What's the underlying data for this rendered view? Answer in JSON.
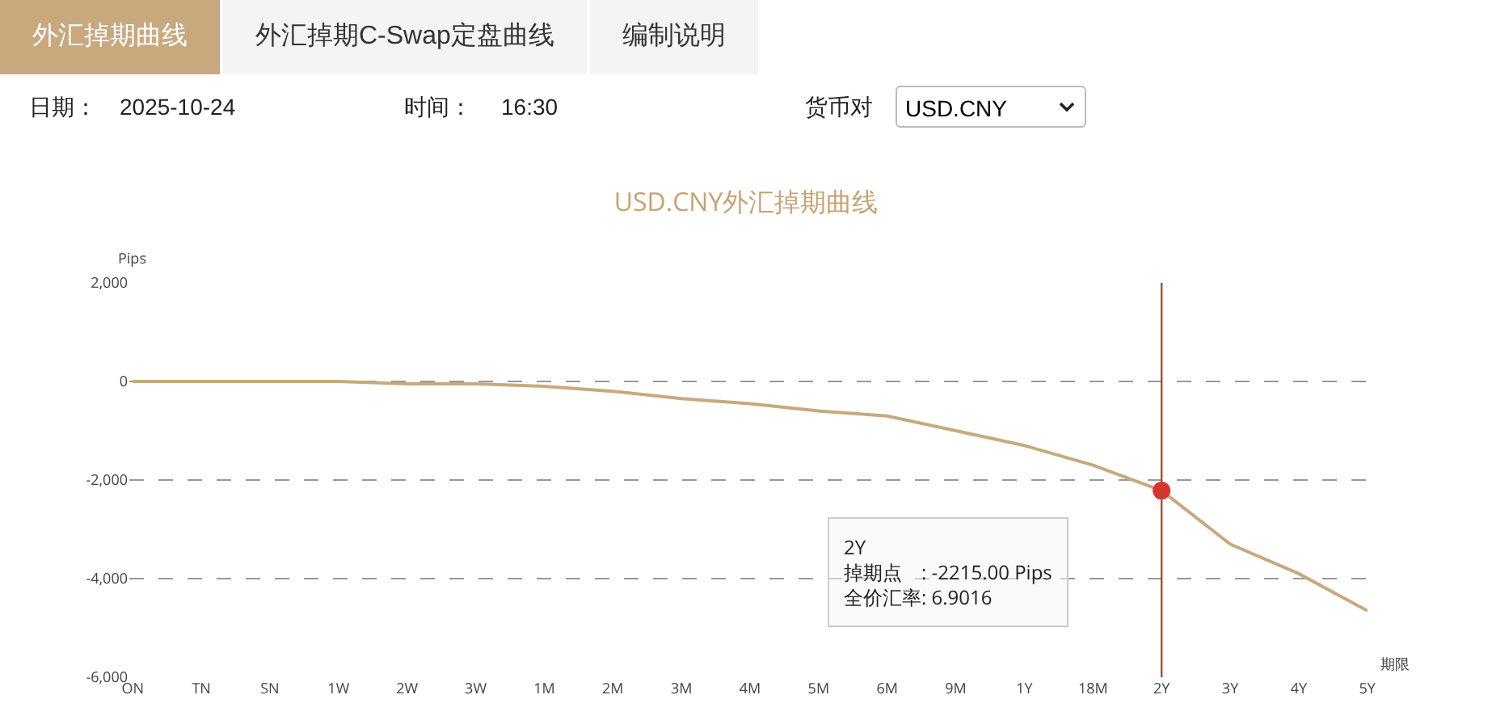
{
  "chart_data": {
    "type": "line",
    "title": "USD.CNY外汇掉期曲线",
    "xlabel": "期限",
    "ylabel": "Pips",
    "categories": [
      "ON",
      "TN",
      "SN",
      "1W",
      "2W",
      "3W",
      "1M",
      "2M",
      "3M",
      "4M",
      "5M",
      "6M",
      "9M",
      "1Y",
      "18M",
      "2Y",
      "3Y",
      "4Y",
      "5Y"
    ],
    "series": [
      {
        "color": "#c8a97e",
        "values": [
          0,
          0,
          0,
          0,
          -50,
          -50,
          -100,
          -200,
          -350,
          -450,
          -600,
          -700,
          -1000,
          -1300,
          -1700,
          -2215,
          -3300,
          -3900,
          -4650
        ]
      }
    ],
    "ylim": [
      -6000,
      2000
    ],
    "yticks": [
      {
        "value": -6000,
        "label": "-6,000"
      },
      {
        "value": -4000,
        "label": "-4,000"
      },
      {
        "value": -2000,
        "label": "-2,000"
      },
      0,
      {
        "value": 2000,
        "label": "2,000"
      }
    ],
    "grid": "y",
    "marker": "none",
    "line_style": "solid",
    "ref_lines": [
      {
        "axis": "x",
        "value": "2Y",
        "color": "#a0522d"
      }
    ],
    "annotations": [
      "外汇掉期曲线",
      "外汇掉期C-Swap定盘曲线",
      "编制说明",
      "日期：",
      "2025-10-24",
      "时间：",
      "16:30",
      "货币对",
      "USD.CNY",
      "2Y\n掉期点　: -2215.00 Pips\n全价汇率: 6.9016"
    ]
  }
}
